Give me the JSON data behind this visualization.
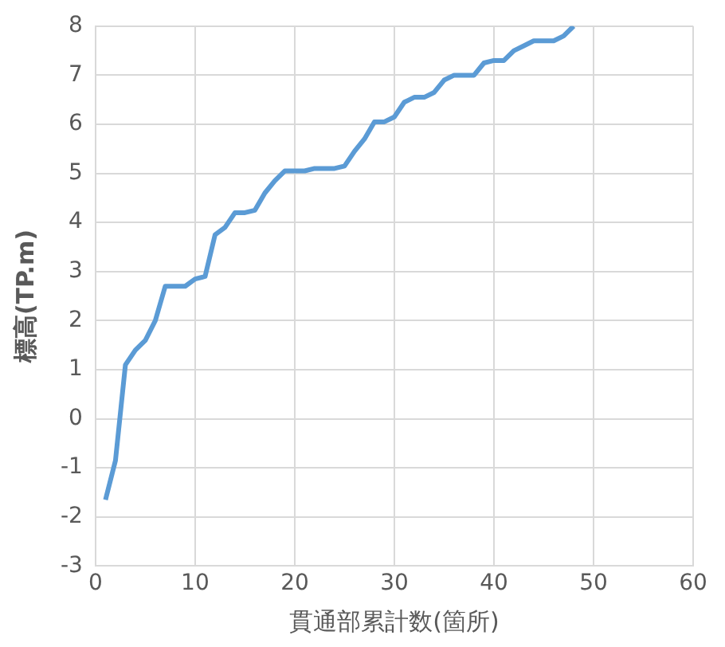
{
  "chart_data": {
    "type": "line",
    "xlabel": "貫通部累計数(箇所)",
    "ylabel": "標高(TP.m)",
    "x": [
      1,
      2,
      3,
      4,
      5,
      6,
      7,
      8,
      9,
      10,
      11,
      12,
      13,
      14,
      15,
      16,
      17,
      18,
      19,
      20,
      21,
      22,
      23,
      24,
      25,
      26,
      27,
      28,
      29,
      30,
      31,
      32,
      33,
      34,
      35,
      36,
      37,
      38,
      39,
      40,
      41,
      42,
      43,
      44,
      45,
      46,
      47,
      48
    ],
    "series": [
      {
        "color": "#5b9bd5",
        "values": [
          -1.65,
          -0.85,
          1.1,
          1.4,
          1.6,
          2.0,
          2.7,
          2.7,
          2.7,
          2.85,
          2.9,
          3.75,
          3.9,
          4.2,
          4.2,
          4.25,
          4.6,
          4.85,
          5.05,
          5.05,
          5.05,
          5.1,
          5.1,
          5.1,
          5.15,
          5.45,
          5.7,
          6.05,
          6.05,
          6.15,
          6.45,
          6.55,
          6.55,
          6.65,
          6.9,
          7.0,
          7.0,
          7.0,
          7.25,
          7.3,
          7.3,
          7.5,
          7.6,
          7.7,
          7.7,
          7.7,
          7.8,
          8.0
        ]
      }
    ],
    "xlim": [
      0,
      60
    ],
    "xticks": [
      0,
      10,
      20,
      30,
      40,
      50,
      60
    ],
    "ylim": [
      -3,
      8
    ],
    "yticks": [
      -3,
      -2,
      -1,
      0,
      1,
      2,
      3,
      4,
      5,
      6,
      7,
      8
    ],
    "grid": true,
    "legend": false,
    "marker": "none",
    "line_style": "solid"
  }
}
